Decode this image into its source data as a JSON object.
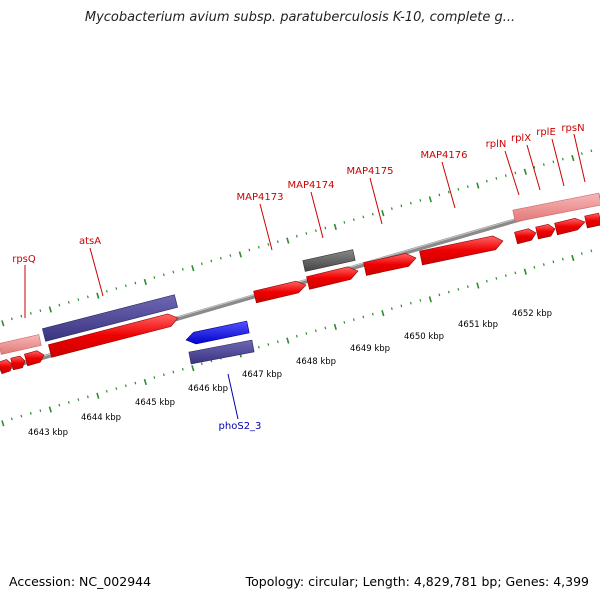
{
  "title": "Mycobacterium avium subsp. paratuberculosis K-10, complete g...",
  "footer": {
    "accession": "Accession: NC_002944",
    "summary": "Topology: circular; Length: 4,829,781 bp; Genes: 4,399"
  },
  "colors": {
    "forward_gene": "#ee0000",
    "forward_gene_light": "#ee8888",
    "reverse_gene_blue": "#0000ee",
    "reverse_gene_purple": "#4b4495",
    "pseudo_gene": "#555555",
    "backbone": "#8a8a8a",
    "ticks": "#2e8b2e",
    "forward_label": "#cc0000",
    "reverse_label": "#0000aa"
  },
  "ruler": {
    "labels": [
      "4643 kbp",
      "4644 kbp",
      "4645 kbp",
      "4646 kbp",
      "4647 kbp",
      "4648 kbp",
      "4649 kbp",
      "4650 kbp",
      "4651 kbp",
      "4652 kbp"
    ]
  },
  "gene_labels": {
    "forward": [
      "rpsQ",
      "atsA",
      "MAP4173",
      "MAP4174",
      "MAP4175",
      "MAP4176",
      "rplN",
      "rplX",
      "rplE",
      "rpsN"
    ],
    "reverse": [
      "phoS2_3"
    ]
  }
}
